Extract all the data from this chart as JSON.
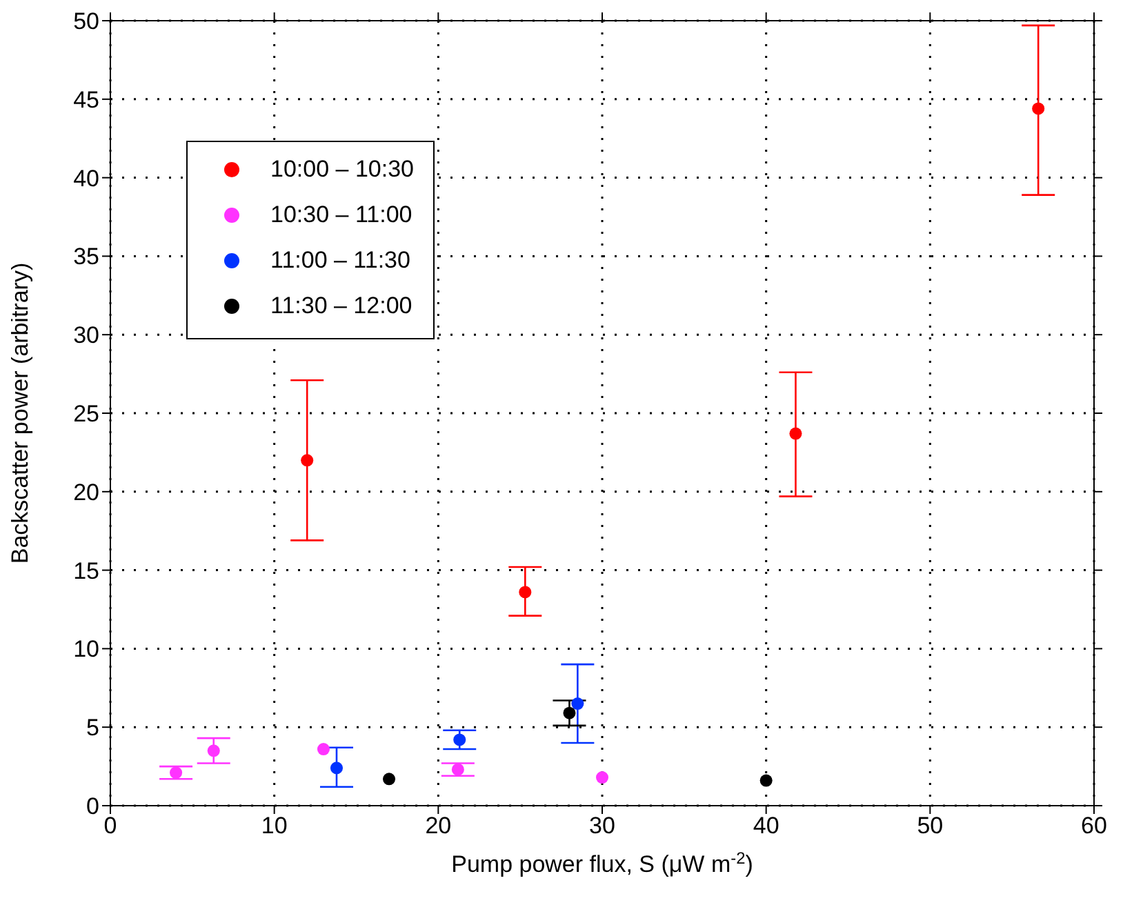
{
  "chart_data": {
    "type": "scatter",
    "xlabel": "Pump power flux, S (μW m$^{-2}$)",
    "ylabel": "Backscatter power (arbitrary)",
    "xlim": [
      0,
      60
    ],
    "xticks": [
      0,
      10,
      20,
      30,
      40,
      50,
      60
    ],
    "ylim": [
      0,
      50
    ],
    "yticks": [
      0,
      5,
      10,
      15,
      20,
      25,
      30,
      35,
      40,
      45,
      50
    ],
    "grid": true,
    "legend": "top left",
    "marker": "circle",
    "series": [
      {
        "name": "10:00 – 10:30",
        "color": "#ff0000",
        "x": [
          12,
          25.3,
          41.8,
          56.6
        ],
        "values": [
          22,
          13.6,
          23.7,
          44.4
        ],
        "errors": [
          [
            16.9,
            27.1
          ],
          [
            12.1,
            15.2
          ],
          [
            19.7,
            27.6
          ],
          [
            38.9,
            49.7
          ]
        ]
      },
      {
        "name": "10:30 – 11:00",
        "color": "#ff33ff",
        "x": [
          4,
          6.3,
          13,
          21.2,
          30
        ],
        "values": [
          2.1,
          3.5,
          3.6,
          2.3,
          1.8
        ],
        "errors": [
          [
            1.7,
            2.5
          ],
          [
            2.7,
            4.3
          ],
          null,
          [
            1.9,
            2.7
          ],
          null
        ]
      },
      {
        "name": "11:00 – 11:30",
        "color": "#0033ff",
        "x": [
          13.8,
          21.3,
          28.5
        ],
        "values": [
          2.4,
          4.2,
          6.5
        ],
        "errors": [
          [
            1.2,
            3.7
          ],
          [
            3.6,
            4.8
          ],
          [
            4.0,
            9.0
          ]
        ]
      },
      {
        "name": "11:30 – 12:00",
        "color": "#000000",
        "x": [
          17,
          28,
          40
        ],
        "values": [
          1.7,
          5.9,
          1.6
        ],
        "errors": [
          null,
          [
            5.1,
            6.7
          ],
          null
        ]
      }
    ]
  }
}
